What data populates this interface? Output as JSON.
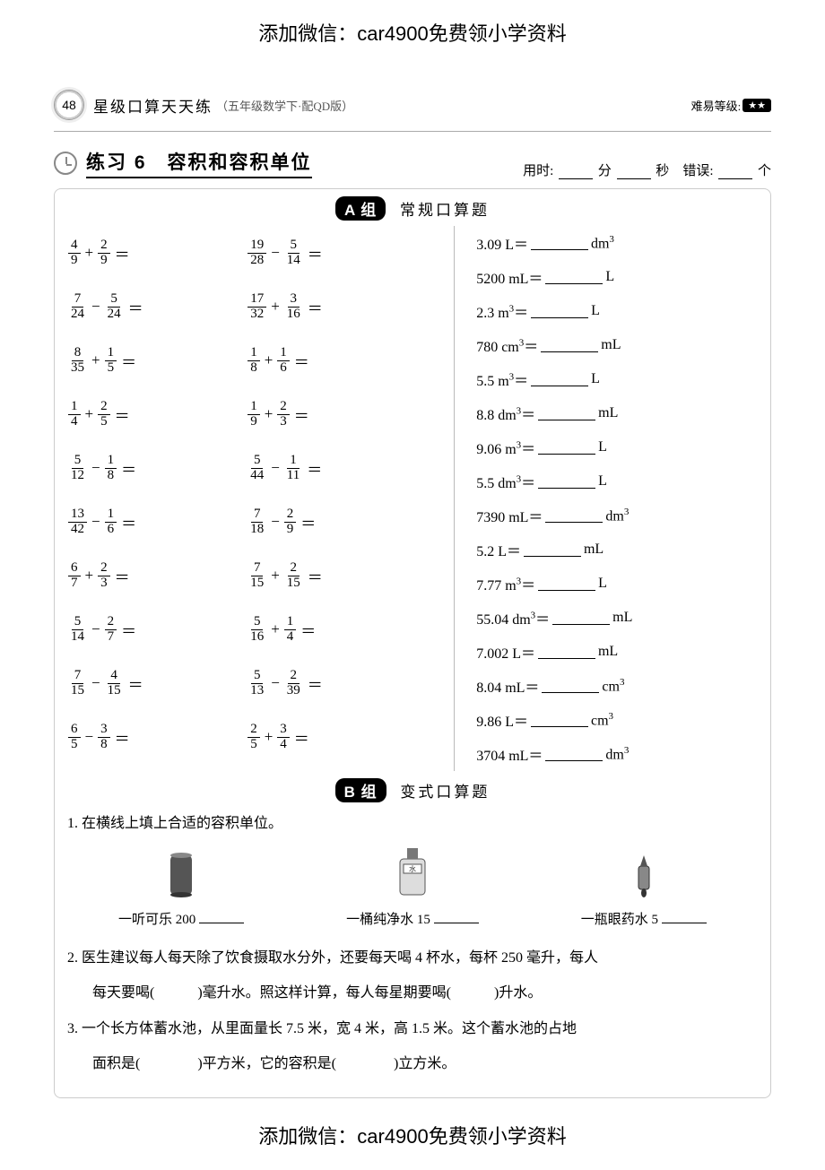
{
  "watermark": "添加微信：car4900免费领小学资料",
  "header": {
    "page_number": "48",
    "book_title": "星级口算天天练",
    "book_subtitle": "（五年级数学下·配QD版）",
    "difficulty_label": "难易等级:",
    "stars": "★★"
  },
  "exercise": {
    "title": "练习 6　容积和容积单位",
    "timing_prefix": "用时:",
    "timing_min": "分",
    "timing_sec": "秒",
    "errors_label": "错误:",
    "errors_unit": "个"
  },
  "group_a": {
    "pill": "A 组",
    "label": "常规口算题",
    "col1": [
      {
        "a_n": "4",
        "a_d": "9",
        "op": "+",
        "b_n": "2",
        "b_d": "9"
      },
      {
        "a_n": "7",
        "a_d": "24",
        "op": "−",
        "b_n": "5",
        "b_d": "24"
      },
      {
        "a_n": "8",
        "a_d": "35",
        "op": "+",
        "b_n": "1",
        "b_d": "5"
      },
      {
        "a_n": "1",
        "a_d": "4",
        "op": "+",
        "b_n": "2",
        "b_d": "5"
      },
      {
        "a_n": "5",
        "a_d": "12",
        "op": "−",
        "b_n": "1",
        "b_d": "8"
      },
      {
        "a_n": "13",
        "a_d": "42",
        "op": "−",
        "b_n": "1",
        "b_d": "6"
      },
      {
        "a_n": "6",
        "a_d": "7",
        "op": "+",
        "b_n": "2",
        "b_d": "3"
      },
      {
        "a_n": "5",
        "a_d": "14",
        "op": "−",
        "b_n": "2",
        "b_d": "7"
      },
      {
        "a_n": "7",
        "a_d": "15",
        "op": "−",
        "b_n": "4",
        "b_d": "15"
      },
      {
        "a_n": "6",
        "a_d": "5",
        "op": "−",
        "b_n": "3",
        "b_d": "8"
      }
    ],
    "col2": [
      {
        "a_n": "19",
        "a_d": "28",
        "op": "−",
        "b_n": "5",
        "b_d": "14"
      },
      {
        "a_n": "17",
        "a_d": "32",
        "op": "+",
        "b_n": "3",
        "b_d": "16"
      },
      {
        "a_n": "1",
        "a_d": "8",
        "op": "+",
        "b_n": "1",
        "b_d": "6"
      },
      {
        "a_n": "1",
        "a_d": "9",
        "op": "+",
        "b_n": "2",
        "b_d": "3"
      },
      {
        "a_n": "5",
        "a_d": "44",
        "op": "−",
        "b_n": "1",
        "b_d": "11"
      },
      {
        "a_n": "7",
        "a_d": "18",
        "op": "−",
        "b_n": "2",
        "b_d": "9"
      },
      {
        "a_n": "7",
        "a_d": "15",
        "op": "+",
        "b_n": "2",
        "b_d": "15"
      },
      {
        "a_n": "5",
        "a_d": "16",
        "op": "+",
        "b_n": "1",
        "b_d": "4"
      },
      {
        "a_n": "5",
        "a_d": "13",
        "op": "−",
        "b_n": "2",
        "b_d": "39"
      },
      {
        "a_n": "2",
        "a_d": "5",
        "op": "+",
        "b_n": "3",
        "b_d": "4"
      }
    ],
    "col3": [
      {
        "lhs": "3.09 L＝",
        "unit": "dm",
        "sup": "3"
      },
      {
        "lhs": "5200 mL＝",
        "unit": "L",
        "sup": ""
      },
      {
        "lhs": "2.3 m",
        "lhs_sup": "3",
        "lhs2": "＝",
        "unit": "L",
        "sup": ""
      },
      {
        "lhs": "780 cm",
        "lhs_sup": "3",
        "lhs2": "＝",
        "unit": "mL",
        "sup": ""
      },
      {
        "lhs": "5.5 m",
        "lhs_sup": "3",
        "lhs2": "＝",
        "unit": "L",
        "sup": ""
      },
      {
        "lhs": "8.8 dm",
        "lhs_sup": "3",
        "lhs2": "＝",
        "unit": "mL",
        "sup": ""
      },
      {
        "lhs": "9.06 m",
        "lhs_sup": "3",
        "lhs2": "＝",
        "unit": "L",
        "sup": ""
      },
      {
        "lhs": "5.5 dm",
        "lhs_sup": "3",
        "lhs2": "＝",
        "unit": "L",
        "sup": ""
      },
      {
        "lhs": "7390 mL＝",
        "unit": "dm",
        "sup": "3"
      },
      {
        "lhs": "5.2 L＝",
        "unit": "mL",
        "sup": ""
      },
      {
        "lhs": "7.77 m",
        "lhs_sup": "3",
        "lhs2": "＝",
        "unit": "L",
        "sup": ""
      },
      {
        "lhs": "55.04 dm",
        "lhs_sup": "3",
        "lhs2": "＝",
        "unit": "mL",
        "sup": ""
      },
      {
        "lhs": "7.002 L＝",
        "unit": "mL",
        "sup": ""
      },
      {
        "lhs": "8.04 mL＝",
        "unit": "cm",
        "sup": "3"
      },
      {
        "lhs": "9.86 L＝",
        "unit": "cm",
        "sup": "3"
      },
      {
        "lhs": "3704 mL＝",
        "unit": "dm",
        "sup": "3"
      }
    ]
  },
  "group_b": {
    "pill": "B 组",
    "label": "变式口算题",
    "q1": "1. 在横线上填上合适的容积单位。",
    "items": [
      {
        "label": "一听可乐 200"
      },
      {
        "label": "一桶纯净水 15"
      },
      {
        "label": "一瓶眼药水 5"
      }
    ],
    "q2_line1": "2. 医生建议每人每天除了饮食摄取水分外，还要每天喝 4 杯水，每杯 250 毫升，每人",
    "q2_line2": "每天要喝(　　　)毫升水。照这样计算，每人每星期要喝(　　　)升水。",
    "q3_line1": "3. 一个长方体蓄水池，从里面量长 7.5 米，宽 4 米，高 1.5 米。这个蓄水池的占地",
    "q3_line2": "面积是(　　　　)平方米，它的容积是(　　　　)立方米。"
  }
}
